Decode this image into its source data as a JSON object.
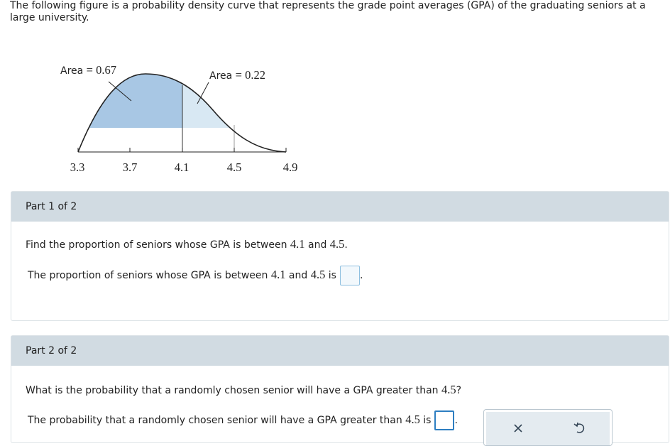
{
  "intro": "The following figure is a probability density curve that represents the grade point averages (GPA) of the graduating seniors at a large university.",
  "figure": {
    "area_labels": [
      {
        "name": "Area",
        "value": "= 0.67"
      },
      {
        "name": "Area",
        "value": "= 0.22"
      }
    ],
    "ticks": [
      "3.3",
      "3.7",
      "4.1",
      "4.5",
      "4.9"
    ]
  },
  "parts": [
    {
      "header": "Part 1 of 2",
      "question": [
        "Find the proportion of seniors whose GPA is between ",
        "4.1",
        " and ",
        "4.5",
        "."
      ],
      "answer": [
        "The proportion of seniors whose GPA is between ",
        "4.1",
        " and ",
        "4.5",
        " is",
        "."
      ]
    },
    {
      "header": "Part 2 of 2",
      "question": [
        "What is the probability that a randomly chosen senior will have a GPA greater than ",
        "4.5",
        "?"
      ],
      "answer": [
        "The probability that a randomly chosen senior will have a GPA greater than ",
        "4.5",
        " is",
        "."
      ]
    }
  ]
}
